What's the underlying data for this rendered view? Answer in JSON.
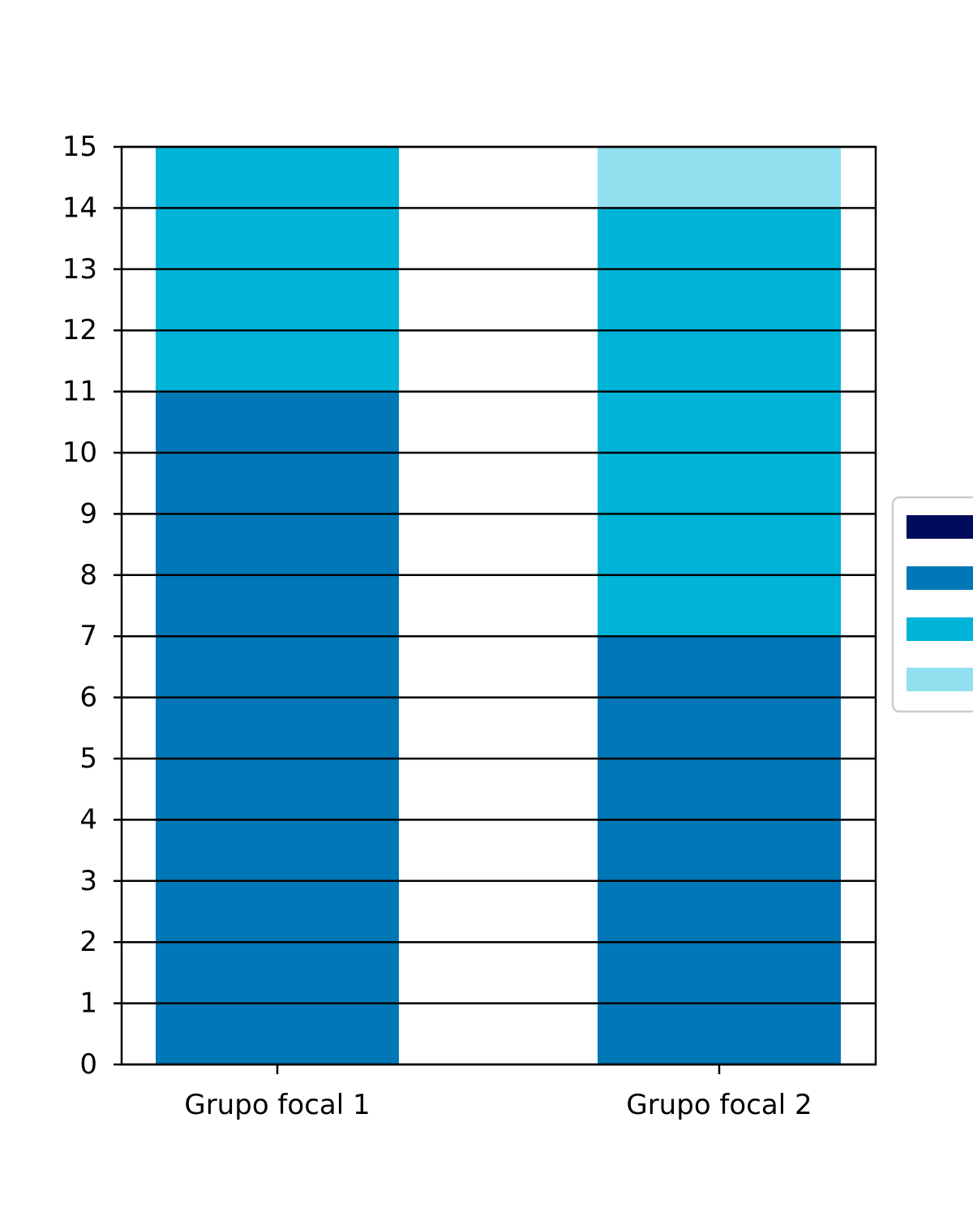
{
  "chart_data": {
    "type": "bar",
    "stacked": true,
    "categories": [
      "Grupo focal 1",
      "Grupo focal 2"
    ],
    "series": [
      {
        "color": "#000b5e",
        "values": [
          0,
          0
        ]
      },
      {
        "color": "#0077b6",
        "values": [
          11,
          7
        ]
      },
      {
        "color": "#00b4d8",
        "values": [
          4,
          7
        ]
      },
      {
        "color": "#90e0ef",
        "values": [
          0,
          1
        ]
      }
    ],
    "ylim": [
      0,
      15
    ],
    "yticks": [
      0,
      1,
      2,
      3,
      4,
      5,
      6,
      7,
      8,
      9,
      10,
      11,
      12,
      13,
      14,
      15
    ],
    "grid": true,
    "legend_position": "right"
  }
}
